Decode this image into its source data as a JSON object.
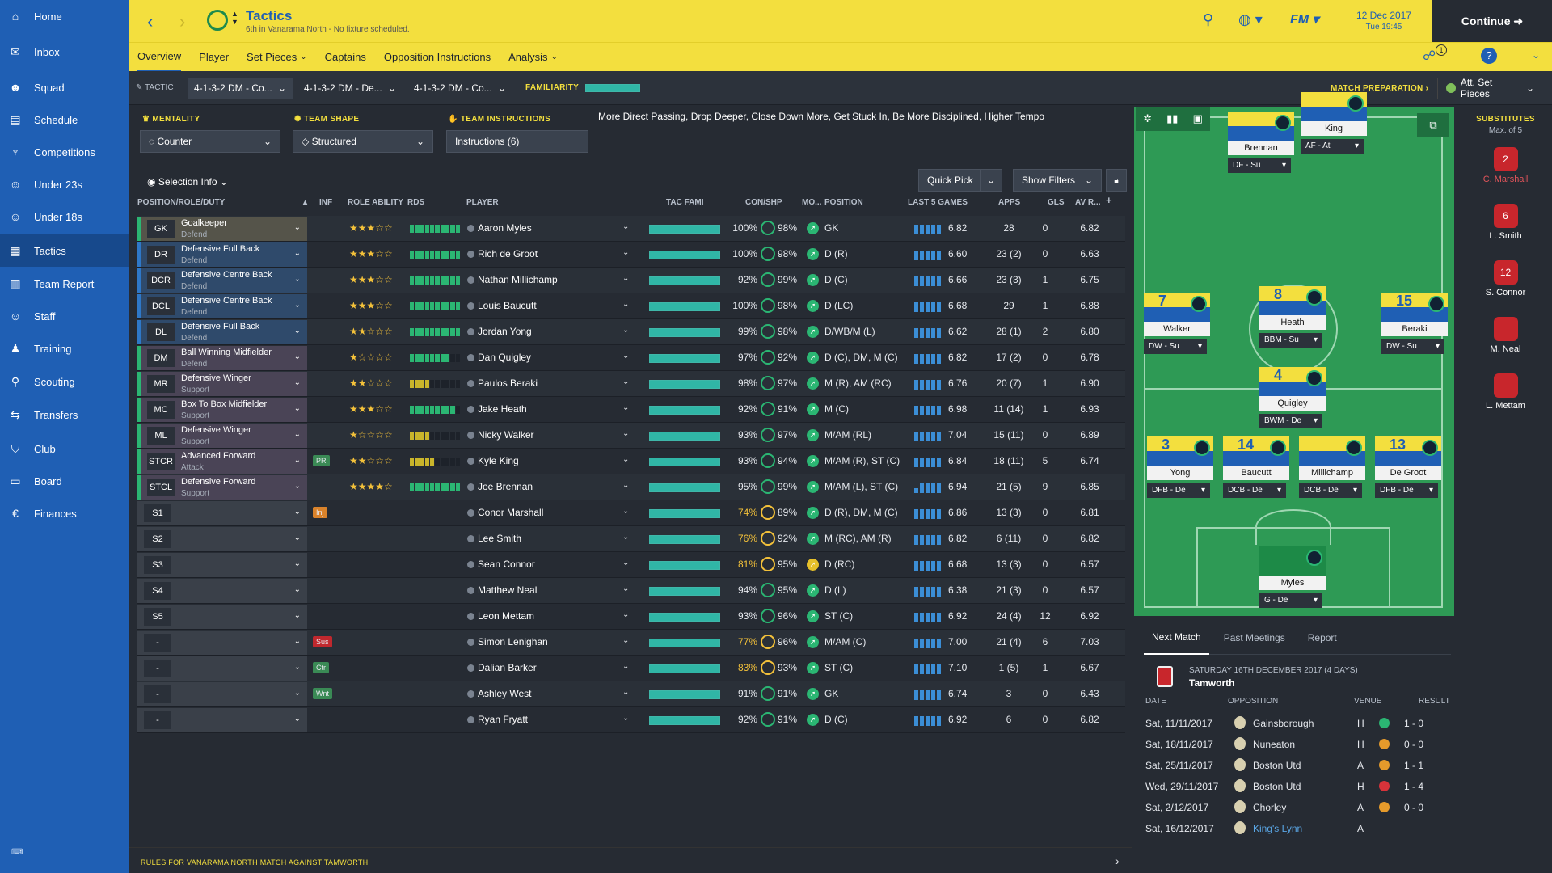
{
  "sidebar": {
    "items": [
      {
        "label": "Home",
        "icon": "home-icon"
      },
      {
        "label": "Inbox",
        "icon": "inbox-icon"
      },
      {
        "label": "Squad",
        "icon": "squad-icon"
      },
      {
        "label": "Schedule",
        "icon": "calendar-icon"
      },
      {
        "label": "Competitions",
        "icon": "trophy-icon"
      },
      {
        "label": "Under 23s",
        "icon": "team-icon"
      },
      {
        "label": "Under 18s",
        "icon": "team-icon"
      },
      {
        "label": "Tactics",
        "icon": "tactics-icon"
      },
      {
        "label": "Team Report",
        "icon": "report-icon"
      },
      {
        "label": "Staff",
        "icon": "staff-icon"
      },
      {
        "label": "Training",
        "icon": "training-icon"
      },
      {
        "label": "Scouting",
        "icon": "search-icon"
      },
      {
        "label": "Transfers",
        "icon": "transfers-icon"
      },
      {
        "label": "Club",
        "icon": "club-icon"
      },
      {
        "label": "Board",
        "icon": "board-icon"
      },
      {
        "label": "Finances",
        "icon": "finances-icon"
      }
    ]
  },
  "header": {
    "title": "Tactics",
    "subtitle": "6th in Vanarama North - No fixture scheduled.",
    "date": "12 Dec 2017",
    "time": "Tue 19:45",
    "continue": "Continue",
    "fm": "FM"
  },
  "subnav": [
    "Overview",
    "Player",
    "Set Pieces",
    "Captains",
    "Opposition Instructions",
    "Analysis"
  ],
  "tacbar": {
    "tactic_label": "TACTIC",
    "tactics": [
      "4-1-3-2 DM - Co...",
      "4-1-3-2 DM - De...",
      "4-1-3-2 DM - Co..."
    ],
    "familiarity": "FAMILIARITY",
    "match_prep": "MATCH PREPARATION",
    "att_set_pieces": "Att. Set Pieces"
  },
  "controls": {
    "mentality_label": "MENTALITY",
    "mentality": "Counter",
    "shape_label": "TEAM SHAPE",
    "shape": "Structured",
    "instructions_label": "TEAM INSTRUCTIONS",
    "instructions": "Instructions (6)",
    "instructions_text": "More Direct Passing, Drop Deeper, Close Down More, Get Stuck In, Be More Disciplined, Higher Tempo",
    "selection_info": "Selection Info",
    "quick_pick": "Quick Pick",
    "show_filters": "Show Filters"
  },
  "columns": [
    "POSITION/ROLE/DUTY",
    "INF",
    "ROLE ABILITY",
    "RDS",
    "PLAYER",
    "TAC FAMI",
    "CON/SHP",
    "MO...",
    "POSITION",
    "LAST 5 GAMES",
    "APPS",
    "GLS",
    "AV R..."
  ],
  "rows": [
    {
      "code": "GK",
      "role": "Goalkeeper",
      "duty": "Defend",
      "stars": "★★★☆☆",
      "rds": 10,
      "name": "Aaron Myles",
      "con": "100%",
      "shp": "98%",
      "pos": "GK",
      "avg": "6.82",
      "apps": "28",
      "gls": "0",
      "avr": "6.82",
      "bars": [
        12,
        12,
        12,
        12,
        12
      ]
    },
    {
      "code": "DR",
      "role": "Defensive Full Back",
      "duty": "Defend",
      "stars": "★★★☆☆",
      "rds": 10,
      "name": "Rich de Groot",
      "con": "100%",
      "shp": "98%",
      "pos": "D (R)",
      "avg": "6.60",
      "apps": "23 (2)",
      "gls": "0",
      "avr": "6.63",
      "bars": [
        12,
        12,
        12,
        12,
        12
      ]
    },
    {
      "code": "DCR",
      "role": "Defensive Centre Back",
      "duty": "Defend",
      "stars": "★★★☆☆",
      "rds": 10,
      "name": "Nathan Millichamp",
      "con": "92%",
      "shp": "99%",
      "pos": "D (C)",
      "avg": "6.66",
      "apps": "23 (3)",
      "gls": "1",
      "avr": "6.75",
      "bars": [
        12,
        12,
        12,
        12,
        12
      ]
    },
    {
      "code": "DCL",
      "role": "Defensive Centre Back",
      "duty": "Defend",
      "stars": "★★★☆☆",
      "rds": 10,
      "name": "Louis Baucutt",
      "con": "100%",
      "shp": "98%",
      "pos": "D (LC)",
      "avg": "6.68",
      "apps": "29",
      "gls": "1",
      "avr": "6.88",
      "bars": [
        12,
        12,
        12,
        12,
        12
      ]
    },
    {
      "code": "DL",
      "role": "Defensive Full Back",
      "duty": "Defend",
      "stars": "★★☆☆☆",
      "rds": 10,
      "name": "Jordan Yong",
      "con": "99%",
      "shp": "98%",
      "pos": "D/WB/M (L)",
      "avg": "6.62",
      "apps": "28 (1)",
      "gls": "2",
      "avr": "6.80",
      "bars": [
        12,
        12,
        12,
        12,
        12
      ]
    },
    {
      "code": "DM",
      "role": "Ball Winning Midfielder",
      "duty": "Defend",
      "stars": "★☆☆☆☆",
      "rds": 8,
      "name": "Dan Quigley",
      "con": "97%",
      "shp": "92%",
      "pos": "D (C), DM, M (C)",
      "avg": "6.82",
      "apps": "17 (2)",
      "gls": "0",
      "avr": "6.78",
      "bars": [
        12,
        12,
        12,
        12,
        12
      ]
    },
    {
      "code": "MR",
      "role": "Defensive Winger",
      "duty": "Support",
      "stars": "★★☆☆☆",
      "rds": 4,
      "name": "Paulos Beraki",
      "con": "98%",
      "shp": "97%",
      "pos": "M (R), AM (RC)",
      "avg": "6.76",
      "apps": "20 (7)",
      "gls": "1",
      "avr": "6.90",
      "bars": [
        12,
        12,
        12,
        12,
        12
      ]
    },
    {
      "code": "MC",
      "role": "Box To Box Midfielder",
      "duty": "Support",
      "stars": "★★★☆☆",
      "rds": 9,
      "name": "Jake Heath",
      "con": "92%",
      "shp": "91%",
      "pos": "M (C)",
      "avg": "6.98",
      "apps": "11 (14)",
      "gls": "1",
      "avr": "6.93",
      "bars": [
        12,
        12,
        12,
        12,
        12
      ]
    },
    {
      "code": "ML",
      "role": "Defensive Winger",
      "duty": "Support",
      "stars": "★☆☆☆☆",
      "rds": 4,
      "name": "Nicky Walker",
      "con": "93%",
      "shp": "97%",
      "pos": "M/AM (RL)",
      "avg": "7.04",
      "apps": "15 (11)",
      "gls": "0",
      "avr": "6.89",
      "bars": [
        12,
        12,
        12,
        12,
        12
      ]
    },
    {
      "code": "STCR",
      "role": "Advanced Forward",
      "duty": "Attack",
      "stars": "★★☆☆☆",
      "rds": 5,
      "name": "Kyle King",
      "con": "93%",
      "shp": "94%",
      "pos": "M/AM (R), ST (C)",
      "avg": "6.84",
      "apps": "18 (11)",
      "gls": "5",
      "avr": "6.74",
      "inf": "PR",
      "infc": "#3a8a55",
      "bars": [
        12,
        12,
        12,
        12,
        12
      ]
    },
    {
      "code": "STCL",
      "role": "Defensive Forward",
      "duty": "Support",
      "stars": "★★★★☆",
      "rds": 10,
      "name": "Joe Brennan",
      "con": "95%",
      "shp": "99%",
      "pos": "M/AM (L), ST (C)",
      "avg": "6.94",
      "apps": "21 (5)",
      "gls": "9",
      "avr": "6.85",
      "bars": [
        6,
        12,
        12,
        12,
        12
      ]
    },
    {
      "code": "S1",
      "role": "",
      "duty": "",
      "stars": "",
      "rds": 0,
      "name": "Conor Marshall",
      "con": "74%",
      "shp": "89%",
      "pos": "D (R), DM, M (C)",
      "avg": "6.86",
      "apps": "13 (3)",
      "gls": "0",
      "avr": "6.81",
      "inf": "Inj",
      "infc": "#d9822b",
      "bars": [
        12,
        12,
        12,
        12,
        12
      ]
    },
    {
      "code": "S2",
      "role": "",
      "duty": "",
      "stars": "",
      "rds": 0,
      "name": "Lee Smith",
      "con": "76%",
      "shp": "92%",
      "pos": "M (RC), AM (R)",
      "avg": "6.82",
      "apps": "6 (11)",
      "gls": "0",
      "avr": "6.82",
      "bars": [
        12,
        12,
        12,
        12,
        12
      ]
    },
    {
      "code": "S3",
      "role": "",
      "duty": "",
      "stars": "",
      "rds": 0,
      "name": "Sean Connor",
      "con": "81%",
      "shp": "95%",
      "pos": "D (RC)",
      "avg": "6.68",
      "apps": "13 (3)",
      "gls": "0",
      "avr": "6.57",
      "bars": [
        12,
        12,
        12,
        12,
        12
      ]
    },
    {
      "code": "S4",
      "role": "",
      "duty": "",
      "stars": "",
      "rds": 0,
      "name": "Matthew Neal",
      "con": "94%",
      "shp": "95%",
      "pos": "D (L)",
      "avg": "6.38",
      "apps": "21 (3)",
      "gls": "0",
      "avr": "6.57",
      "bars": [
        12,
        12,
        12,
        12,
        12
      ]
    },
    {
      "code": "S5",
      "role": "",
      "duty": "",
      "stars": "",
      "rds": 0,
      "name": "Leon Mettam",
      "con": "93%",
      "shp": "96%",
      "pos": "ST (C)",
      "avg": "6.92",
      "apps": "24 (4)",
      "gls": "12",
      "avr": "6.92",
      "bars": [
        12,
        12,
        12,
        12,
        12
      ]
    },
    {
      "code": "-",
      "role": "",
      "duty": "",
      "stars": "",
      "rds": 0,
      "name": "Simon Lenighan",
      "con": "77%",
      "shp": "96%",
      "pos": "M/AM (C)",
      "avg": "7.00",
      "apps": "21 (4)",
      "gls": "6",
      "avr": "7.03",
      "inf": "Sus",
      "infc": "#c0282e",
      "bars": [
        12,
        12,
        12,
        12,
        12
      ]
    },
    {
      "code": "-",
      "role": "",
      "duty": "",
      "stars": "",
      "rds": 0,
      "name": "Dalian Barker",
      "con": "83%",
      "shp": "93%",
      "pos": "ST (C)",
      "avg": "7.10",
      "apps": "1 (5)",
      "gls": "1",
      "avr": "6.67",
      "inf": "Ctr",
      "infc": "#3a8a55",
      "bars": [
        12,
        12,
        12,
        12,
        12
      ]
    },
    {
      "code": "-",
      "role": "",
      "duty": "",
      "stars": "",
      "rds": 0,
      "name": "Ashley West",
      "con": "91%",
      "shp": "91%",
      "pos": "GK",
      "avg": "6.74",
      "apps": "3",
      "gls": "0",
      "avr": "6.43",
      "inf": "Wnt",
      "infc": "#3a8a55",
      "bars": [
        12,
        12,
        12,
        12,
        12
      ]
    },
    {
      "code": "-",
      "role": "",
      "duty": "",
      "stars": "",
      "rds": 0,
      "name": "Ryan Fryatt",
      "con": "92%",
      "shp": "91%",
      "pos": "D (C)",
      "avg": "6.92",
      "apps": "6",
      "gls": "0",
      "avr": "6.82",
      "bars": [
        12,
        12,
        12,
        12,
        12
      ]
    }
  ],
  "pitch": {
    "players": [
      {
        "num": "",
        "name": "Brennan",
        "role": "DF - Su"
      },
      {
        "num": "",
        "name": "King",
        "role": "AF - At"
      },
      {
        "num": "7",
        "name": "Walker",
        "role": "DW - Su"
      },
      {
        "num": "8",
        "name": "Heath",
        "role": "BBM - Su"
      },
      {
        "num": "15",
        "name": "Beraki",
        "role": "DW - Su"
      },
      {
        "num": "4",
        "name": "Quigley",
        "role": "BWM - De"
      },
      {
        "num": "3",
        "name": "Yong",
        "role": "DFB - De"
      },
      {
        "num": "14",
        "name": "Baucutt",
        "role": "DCB - De"
      },
      {
        "num": "",
        "name": "Millichamp",
        "role": "DCB - De"
      },
      {
        "num": "13",
        "name": "De Groot",
        "role": "DFB - De"
      },
      {
        "num": "",
        "name": "Myles",
        "role": "G - De"
      }
    ]
  },
  "substitutes": {
    "title": "SUBSTITUTES",
    "max": "Max. of 5",
    "players": [
      {
        "num": "2",
        "name": "C. Marshall"
      },
      {
        "num": "6",
        "name": "L. Smith"
      },
      {
        "num": "12",
        "name": "S. Connor"
      },
      {
        "num": "",
        "name": "M. Neal"
      },
      {
        "num": "",
        "name": "L. Mettam"
      }
    ]
  },
  "nextmatch": {
    "tabs": [
      "Next Match",
      "Past Meetings",
      "Report"
    ],
    "date": "SATURDAY 16TH DECEMBER 2017 (4 DAYS)",
    "team": "Tamworth",
    "cols": [
      "DATE",
      "OPPOSITION",
      "VENUE",
      "RESULT"
    ],
    "games": [
      {
        "date": "Sat, 11/11/2017",
        "opp": "Gainsborough",
        "venue": "H",
        "result": "1 - 0",
        "color": "#2bb673"
      },
      {
        "date": "Sat, 18/11/2017",
        "opp": "Nuneaton",
        "venue": "H",
        "result": "0 - 0",
        "color": "#e59a2b"
      },
      {
        "date": "Sat, 25/11/2017",
        "opp": "Boston Utd",
        "venue": "A",
        "result": "1 - 1",
        "color": "#e59a2b"
      },
      {
        "date": "Wed, 29/11/2017",
        "opp": "Boston Utd",
        "venue": "H",
        "result": "1 - 4",
        "color": "#d7333a"
      },
      {
        "date": "Sat, 2/12/2017",
        "opp": "Chorley",
        "venue": "A",
        "result": "0 - 0",
        "color": "#e59a2b"
      },
      {
        "date": "Sat, 16/12/2017",
        "opp": "King's Lynn",
        "venue": "A",
        "result": "",
        "color": ""
      }
    ]
  },
  "footer": {
    "rules": "RULES FOR VANARAMA NORTH MATCH AGAINST TAMWORTH"
  }
}
